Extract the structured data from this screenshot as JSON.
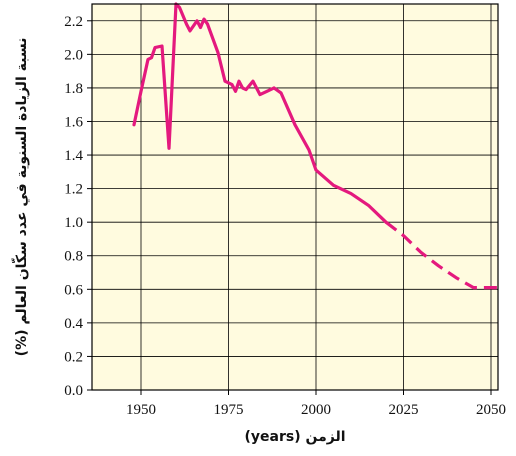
{
  "chart_data": {
    "type": "line",
    "title": "",
    "xlabel": "الزمن (years)",
    "ylabel": "نسبة الزيادة السنوية في عدد سكّان العالم (%)",
    "xlim": [
      1936,
      2052
    ],
    "ylim": [
      0.0,
      2.3
    ],
    "x_ticks": [
      "1950",
      "1975",
      "2000",
      "2025",
      "2050"
    ],
    "y_ticks": [
      "0.0",
      "0.2",
      "0.4",
      "0.6",
      "0.8",
      "1.0",
      "1.2",
      "1.4",
      "1.6",
      "1.8",
      "2.0",
      "2.2"
    ],
    "grid": true,
    "line_color": "#e4197e",
    "series": [
      {
        "style": "solid",
        "x": [
          1948,
          1950,
          1952,
          1953,
          1954,
          1956,
          1958,
          1960,
          1961,
          1963,
          1964,
          1966,
          1967,
          1968,
          1969,
          1972,
          1974,
          1976,
          1977,
          1978,
          1979,
          1980,
          1982,
          1984,
          1986,
          1988,
          1990,
          1994,
          1998,
          2000,
          2005,
          2010,
          2015,
          2020
        ],
        "y": [
          1.58,
          1.78,
          1.97,
          1.98,
          2.04,
          2.05,
          1.44,
          2.3,
          2.28,
          2.18,
          2.14,
          2.2,
          2.16,
          2.21,
          2.18,
          2.01,
          1.84,
          1.82,
          1.78,
          1.84,
          1.8,
          1.79,
          1.84,
          1.76,
          1.78,
          1.8,
          1.77,
          1.58,
          1.43,
          1.31,
          1.22,
          1.17,
          1.1,
          1.0
        ]
      },
      {
        "style": "dashed",
        "x": [
          2020,
          2025,
          2030,
          2035,
          2040,
          2045,
          2050,
          2052
        ],
        "y": [
          1.0,
          0.92,
          0.82,
          0.74,
          0.67,
          0.61,
          0.61,
          0.61
        ]
      }
    ]
  }
}
